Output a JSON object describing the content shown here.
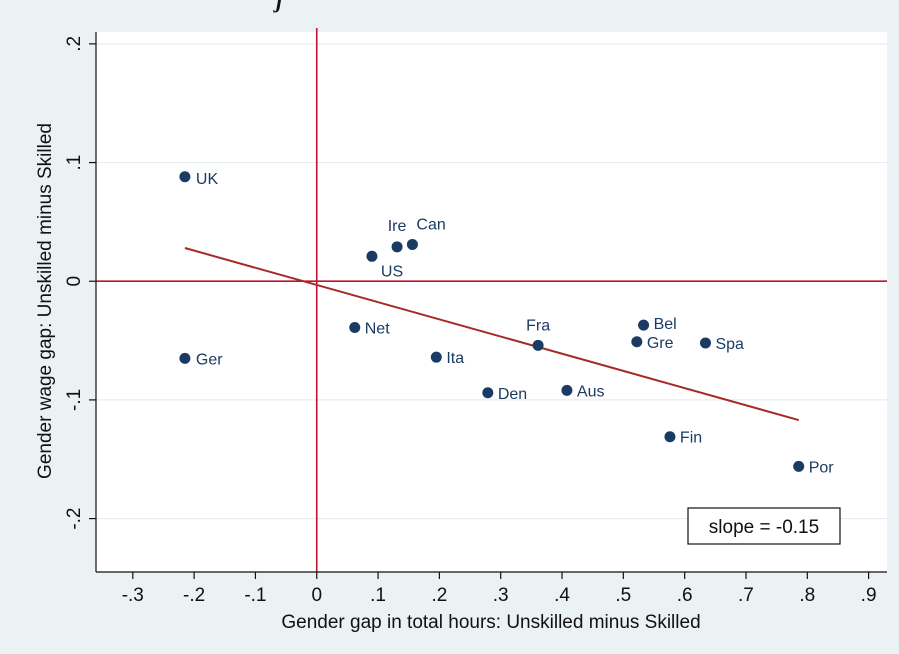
{
  "chart_data": {
    "type": "scatter",
    "title": "j",
    "xlabel": "Gender gap in total hours: Unskilled minus Skilled",
    "ylabel": "Gender wage gap: Unskilled minus Skilled",
    "xlim": [
      -0.36,
      0.93
    ],
    "ylim": [
      -0.245,
      0.21
    ],
    "xticks": [
      -0.3,
      -0.2,
      -0.1,
      0,
      0.1,
      0.2,
      0.3,
      0.4,
      0.5,
      0.6,
      0.7,
      0.8,
      0.9
    ],
    "xtick_labels": [
      "-.3",
      "-.2",
      "-.1",
      "0",
      ".1",
      ".2",
      ".3",
      ".4",
      ".5",
      ".6",
      ".7",
      ".8",
      ".9"
    ],
    "yticks": [
      0.2,
      0.1,
      0,
      -0.1,
      -0.2
    ],
    "ytick_labels": [
      ".2",
      ".1",
      "0",
      "-.1",
      "-.2"
    ],
    "grid": true,
    "reference_lines": {
      "x": 0,
      "y": 0,
      "color": "#c1122f"
    },
    "points": [
      {
        "label": "UK",
        "x": -0.215,
        "y": 0.088
      },
      {
        "label": "Ger",
        "x": -0.215,
        "y": -0.065
      },
      {
        "label": "Ire",
        "x": 0.131,
        "y": 0.029
      },
      {
        "label": "Can",
        "x": 0.156,
        "y": 0.031
      },
      {
        "label": "US",
        "x": 0.09,
        "y": 0.021
      },
      {
        "label": "Net",
        "x": 0.062,
        "y": -0.039
      },
      {
        "label": "Ita",
        "x": 0.195,
        "y": -0.064
      },
      {
        "label": "Den",
        "x": 0.279,
        "y": -0.094
      },
      {
        "label": "Fra",
        "x": 0.361,
        "y": -0.054
      },
      {
        "label": "Aus",
        "x": 0.408,
        "y": -0.092
      },
      {
        "label": "Bel",
        "x": 0.533,
        "y": -0.037
      },
      {
        "label": "Gre",
        "x": 0.522,
        "y": -0.051
      },
      {
        "label": "Spa",
        "x": 0.634,
        "y": -0.052
      },
      {
        "label": "Fin",
        "x": 0.576,
        "y": -0.131
      },
      {
        "label": "Por",
        "x": 0.786,
        "y": -0.156
      }
    ],
    "fit_line": {
      "x": [
        -0.215,
        0.786
      ],
      "y": [
        0.028,
        -0.117
      ],
      "color": "#a52a2a"
    },
    "annotation": "slope = -0.15",
    "colors": {
      "marker": "#1a3b63",
      "background": "#eaf2f3",
      "plot": "#ffffff"
    }
  }
}
